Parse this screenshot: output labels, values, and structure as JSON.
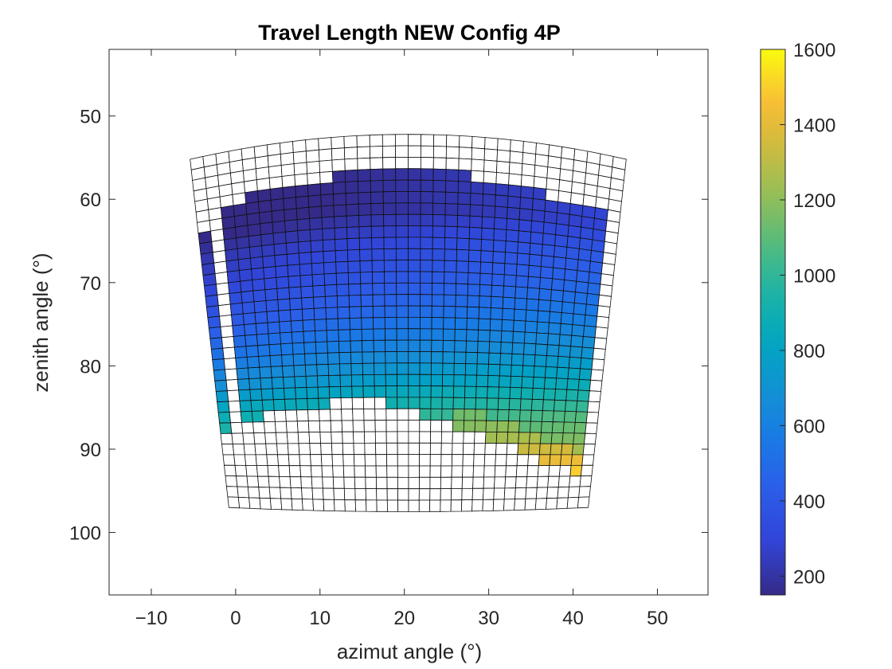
{
  "chart_data": {
    "type": "heatmap",
    "title": "Travel Length NEW Config 4P",
    "xlabel": "azimut angle (°)",
    "ylabel": "zenith angle (°)",
    "xlim": [
      -15,
      56
    ],
    "ylim": [
      42,
      107.5
    ],
    "y_reversed": true,
    "x_ticks": [
      -10,
      0,
      10,
      20,
      30,
      40,
      50
    ],
    "y_ticks": [
      50,
      60,
      70,
      80,
      90,
      100
    ],
    "grid": false,
    "colorbar": {
      "min": 150,
      "max": 1600,
      "ticks": [
        200,
        400,
        600,
        800,
        1000,
        1200,
        1400,
        1600
      ],
      "colormap": "parula",
      "placement": "right"
    },
    "mesh": {
      "columns": 34,
      "rows": 33,
      "corners": {
        "top_left": [
          -5.4,
          55.2
        ],
        "top_center": [
          20.5,
          52.2
        ],
        "top_right": [
          46.3,
          55.2
        ],
        "bottom_left": [
          -0.8,
          97.0
        ],
        "bottom_center": [
          20.5,
          97.5
        ],
        "bottom_right": [
          41.8,
          97.0
        ]
      }
    },
    "missing_color": "#ffffff",
    "value_profile_by_row": [
      [
        6,
        200
      ],
      [
        9,
        320
      ],
      [
        12,
        400
      ],
      [
        15,
        500
      ],
      [
        18,
        620
      ],
      [
        21,
        780
      ],
      [
        24,
        990
      ],
      [
        26,
        1080
      ],
      [
        32,
        1500
      ]
    ],
    "filled_region": {
      "top_row_by_column": [
        99,
        99,
        5,
        5,
        4,
        4,
        4,
        4,
        4,
        4,
        4,
        3,
        3,
        3,
        3,
        3,
        3,
        3,
        3,
        3,
        3,
        3,
        4,
        4,
        4,
        4,
        4,
        4,
        5,
        5,
        5,
        5,
        5,
        99
      ],
      "bottom_row_by_column": [
        -1,
        -1,
        24,
        24,
        23,
        23,
        23,
        23,
        23,
        23,
        22,
        22,
        22,
        22,
        22,
        23,
        23,
        23,
        24,
        24,
        24,
        25,
        25,
        25,
        26,
        26,
        26,
        27,
        27,
        28,
        28,
        28,
        29,
        -1
      ],
      "first_column_row_top": 7,
      "first_column_row_bottom": 25
    }
  }
}
